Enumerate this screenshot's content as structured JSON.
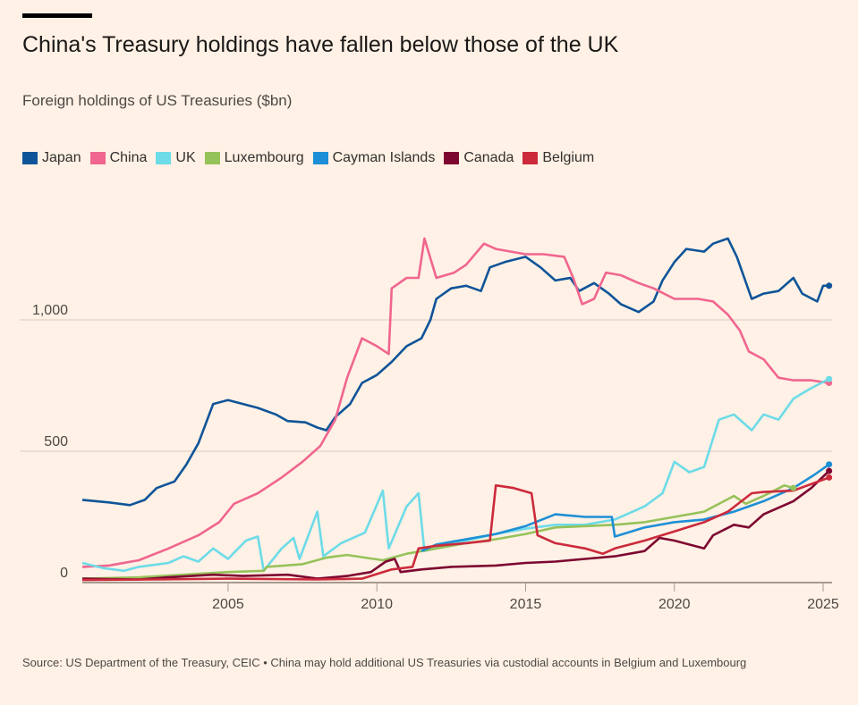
{
  "header": {
    "title": "China's Treasury holdings have fallen below those of the UK",
    "subtitle": "Foreign holdings of US Treasuries ($bn)"
  },
  "source": "Source: US Department of the Treasury, CEIC • China may hold additional US Treasuries via custodial accounts in Belgium and Luxembourg",
  "chart_data": {
    "type": "line",
    "title": "China's Treasury holdings have fallen below those of the UK",
    "ylabel": "Foreign holdings of US Treasuries ($bn)",
    "xlim": [
      2000.1,
      2025.3
    ],
    "ylim": [
      0,
      1400
    ],
    "x_ticks": [
      2005,
      2010,
      2015,
      2020,
      2025
    ],
    "x_tick_labels": [
      "2005",
      "2010",
      "2015",
      "2020",
      "2025"
    ],
    "y_ticks": [
      0,
      500,
      1000
    ],
    "y_tick_labels": [
      "0",
      "500",
      "1,000"
    ],
    "grid": "horizontal",
    "legend": "top",
    "series": [
      {
        "name": "Japan",
        "color": "#0f5499",
        "points": [
          [
            2000.1,
            315
          ],
          [
            2001,
            305
          ],
          [
            2001.7,
            295
          ],
          [
            2002.2,
            315
          ],
          [
            2002.6,
            360
          ],
          [
            2003.2,
            385
          ],
          [
            2003.6,
            450
          ],
          [
            2004,
            530
          ],
          [
            2004.5,
            680
          ],
          [
            2005,
            695
          ],
          [
            2005.5,
            680
          ],
          [
            2006,
            665
          ],
          [
            2006.6,
            640
          ],
          [
            2007,
            615
          ],
          [
            2007.6,
            610
          ],
          [
            2008,
            590
          ],
          [
            2008.3,
            580
          ],
          [
            2008.6,
            630
          ],
          [
            2009.1,
            680
          ],
          [
            2009.5,
            760
          ],
          [
            2010,
            790
          ],
          [
            2010.5,
            840
          ],
          [
            2011,
            900
          ],
          [
            2011.5,
            930
          ],
          [
            2011.8,
            1000
          ],
          [
            2012,
            1080
          ],
          [
            2012.5,
            1120
          ],
          [
            2013,
            1130
          ],
          [
            2013.5,
            1110
          ],
          [
            2013.8,
            1200
          ],
          [
            2014.3,
            1220
          ],
          [
            2015,
            1240
          ],
          [
            2015.5,
            1200
          ],
          [
            2016,
            1150
          ],
          [
            2016.5,
            1160
          ],
          [
            2016.8,
            1110
          ],
          [
            2017.3,
            1140
          ],
          [
            2017.8,
            1100
          ],
          [
            2018.2,
            1060
          ],
          [
            2018.8,
            1030
          ],
          [
            2019.3,
            1070
          ],
          [
            2019.6,
            1150
          ],
          [
            2020,
            1220
          ],
          [
            2020.4,
            1270
          ],
          [
            2021,
            1260
          ],
          [
            2021.3,
            1290
          ],
          [
            2021.8,
            1310
          ],
          [
            2022.1,
            1240
          ],
          [
            2022.6,
            1080
          ],
          [
            2023,
            1100
          ],
          [
            2023.5,
            1110
          ],
          [
            2024,
            1160
          ],
          [
            2024.3,
            1100
          ],
          [
            2024.8,
            1070
          ],
          [
            2025,
            1130
          ],
          [
            2025.2,
            1130
          ]
        ]
      },
      {
        "name": "China",
        "color": "#f0668f",
        "points": [
          [
            2000.1,
            60
          ],
          [
            2001,
            65
          ],
          [
            2002,
            85
          ],
          [
            2003,
            130
          ],
          [
            2004,
            180
          ],
          [
            2004.7,
            230
          ],
          [
            2005.2,
            300
          ],
          [
            2006,
            340
          ],
          [
            2006.8,
            400
          ],
          [
            2007.5,
            460
          ],
          [
            2008.1,
            520
          ],
          [
            2008.6,
            620
          ],
          [
            2009,
            780
          ],
          [
            2009.5,
            930
          ],
          [
            2010,
            900
          ],
          [
            2010.4,
            870
          ],
          [
            2010.5,
            1120
          ],
          [
            2011,
            1160
          ],
          [
            2011.4,
            1160
          ],
          [
            2011.6,
            1310
          ],
          [
            2012,
            1160
          ],
          [
            2012.6,
            1180
          ],
          [
            2013,
            1210
          ],
          [
            2013.6,
            1290
          ],
          [
            2014,
            1270
          ],
          [
            2015,
            1250
          ],
          [
            2015.6,
            1250
          ],
          [
            2016.3,
            1240
          ],
          [
            2016.6,
            1160
          ],
          [
            2016.9,
            1060
          ],
          [
            2017.3,
            1080
          ],
          [
            2017.7,
            1180
          ],
          [
            2018.2,
            1170
          ],
          [
            2018.8,
            1140
          ],
          [
            2019.3,
            1120
          ],
          [
            2020,
            1080
          ],
          [
            2020.8,
            1080
          ],
          [
            2021.3,
            1070
          ],
          [
            2021.8,
            1020
          ],
          [
            2022.2,
            960
          ],
          [
            2022.5,
            880
          ],
          [
            2023,
            850
          ],
          [
            2023.5,
            780
          ],
          [
            2024,
            770
          ],
          [
            2024.6,
            770
          ],
          [
            2025.2,
            760
          ]
        ]
      },
      {
        "name": "UK",
        "color": "#6ddbe8",
        "points": [
          [
            2000.1,
            75
          ],
          [
            2000.8,
            55
          ],
          [
            2001.5,
            45
          ],
          [
            2002,
            60
          ],
          [
            2003,
            75
          ],
          [
            2003.5,
            100
          ],
          [
            2004,
            80
          ],
          [
            2004.5,
            130
          ],
          [
            2005,
            90
          ],
          [
            2005.6,
            160
          ],
          [
            2006,
            175
          ],
          [
            2006.2,
            45
          ],
          [
            2006.8,
            130
          ],
          [
            2007.2,
            170
          ],
          [
            2007.4,
            90
          ],
          [
            2008,
            270
          ],
          [
            2008.2,
            100
          ],
          [
            2008.8,
            150
          ],
          [
            2009.6,
            190
          ],
          [
            2010.2,
            350
          ],
          [
            2010.4,
            130
          ],
          [
            2011,
            290
          ],
          [
            2011.4,
            340
          ],
          [
            2011.6,
            120
          ],
          [
            2012.3,
            140
          ],
          [
            2013,
            160
          ],
          [
            2014,
            185
          ],
          [
            2015,
            205
          ],
          [
            2016,
            220
          ],
          [
            2017,
            220
          ],
          [
            2018,
            240
          ],
          [
            2019,
            290
          ],
          [
            2019.6,
            340
          ],
          [
            2020,
            460
          ],
          [
            2020.5,
            420
          ],
          [
            2021,
            440
          ],
          [
            2021.5,
            620
          ],
          [
            2022,
            640
          ],
          [
            2022.4,
            600
          ],
          [
            2022.6,
            580
          ],
          [
            2023,
            640
          ],
          [
            2023.5,
            620
          ],
          [
            2024,
            700
          ],
          [
            2024.6,
            740
          ],
          [
            2025.2,
            775
          ]
        ]
      },
      {
        "name": "Luxembourg",
        "color": "#96c25a",
        "points": [
          [
            2000.1,
            15
          ],
          [
            2002,
            20
          ],
          [
            2003.5,
            30
          ],
          [
            2005,
            40
          ],
          [
            2006.2,
            45
          ],
          [
            2006.3,
            60
          ],
          [
            2007.5,
            70
          ],
          [
            2008.3,
            95
          ],
          [
            2009,
            105
          ],
          [
            2010.2,
            85
          ],
          [
            2011,
            110
          ],
          [
            2012,
            130
          ],
          [
            2013,
            150
          ],
          [
            2014,
            165
          ],
          [
            2015,
            185
          ],
          [
            2016,
            210
          ],
          [
            2017,
            215
          ],
          [
            2018,
            220
          ],
          [
            2019,
            230
          ],
          [
            2020,
            250
          ],
          [
            2021,
            270
          ],
          [
            2022,
            330
          ],
          [
            2022.4,
            300
          ],
          [
            2023,
            330
          ],
          [
            2023.7,
            370
          ],
          [
            2024,
            360
          ]
        ]
      },
      {
        "name": "Cayman Islands",
        "color": "#1e8fd6",
        "points": [
          [
            2011.5,
            120
          ],
          [
            2012,
            145
          ],
          [
            2013,
            165
          ],
          [
            2014,
            185
          ],
          [
            2015,
            215
          ],
          [
            2016,
            260
          ],
          [
            2017,
            250
          ],
          [
            2017.9,
            250
          ],
          [
            2018,
            175
          ],
          [
            2019,
            210
          ],
          [
            2020,
            230
          ],
          [
            2021,
            240
          ],
          [
            2022,
            270
          ],
          [
            2023,
            310
          ],
          [
            2024,
            360
          ],
          [
            2024.7,
            410
          ],
          [
            2025.2,
            450
          ]
        ]
      },
      {
        "name": "Canada",
        "color": "#7d0631",
        "points": [
          [
            2000.1,
            15
          ],
          [
            2002,
            12
          ],
          [
            2003,
            20
          ],
          [
            2004.5,
            30
          ],
          [
            2005.5,
            25
          ],
          [
            2007,
            30
          ],
          [
            2008,
            15
          ],
          [
            2009,
            25
          ],
          [
            2009.8,
            40
          ],
          [
            2010.3,
            80
          ],
          [
            2010.6,
            90
          ],
          [
            2010.8,
            40
          ],
          [
            2011.5,
            50
          ],
          [
            2012.5,
            60
          ],
          [
            2014,
            65
          ],
          [
            2015,
            75
          ],
          [
            2016,
            80
          ],
          [
            2017,
            90
          ],
          [
            2018,
            100
          ],
          [
            2019,
            120
          ],
          [
            2019.5,
            170
          ],
          [
            2020,
            160
          ],
          [
            2021,
            130
          ],
          [
            2021.3,
            180
          ],
          [
            2022,
            220
          ],
          [
            2022.5,
            210
          ],
          [
            2023,
            260
          ],
          [
            2024,
            310
          ],
          [
            2024.6,
            360
          ],
          [
            2025.2,
            425
          ]
        ]
      },
      {
        "name": "Belgium",
        "color": "#cc2a3c",
        "points": [
          [
            2000.1,
            10
          ],
          [
            2002.5,
            12
          ],
          [
            2005,
            15
          ],
          [
            2008,
            12
          ],
          [
            2009.5,
            15
          ],
          [
            2010.5,
            50
          ],
          [
            2011.2,
            60
          ],
          [
            2011.4,
            130
          ],
          [
            2012,
            140
          ],
          [
            2013,
            150
          ],
          [
            2013.8,
            160
          ],
          [
            2014,
            370
          ],
          [
            2014.6,
            360
          ],
          [
            2015.2,
            340
          ],
          [
            2015.4,
            180
          ],
          [
            2016,
            150
          ],
          [
            2017,
            130
          ],
          [
            2017.6,
            110
          ],
          [
            2018,
            130
          ],
          [
            2019,
            160
          ],
          [
            2020,
            195
          ],
          [
            2021,
            230
          ],
          [
            2021.8,
            270
          ],
          [
            2022.6,
            340
          ],
          [
            2023,
            345
          ],
          [
            2024,
            350
          ],
          [
            2025.2,
            400
          ]
        ]
      }
    ]
  }
}
